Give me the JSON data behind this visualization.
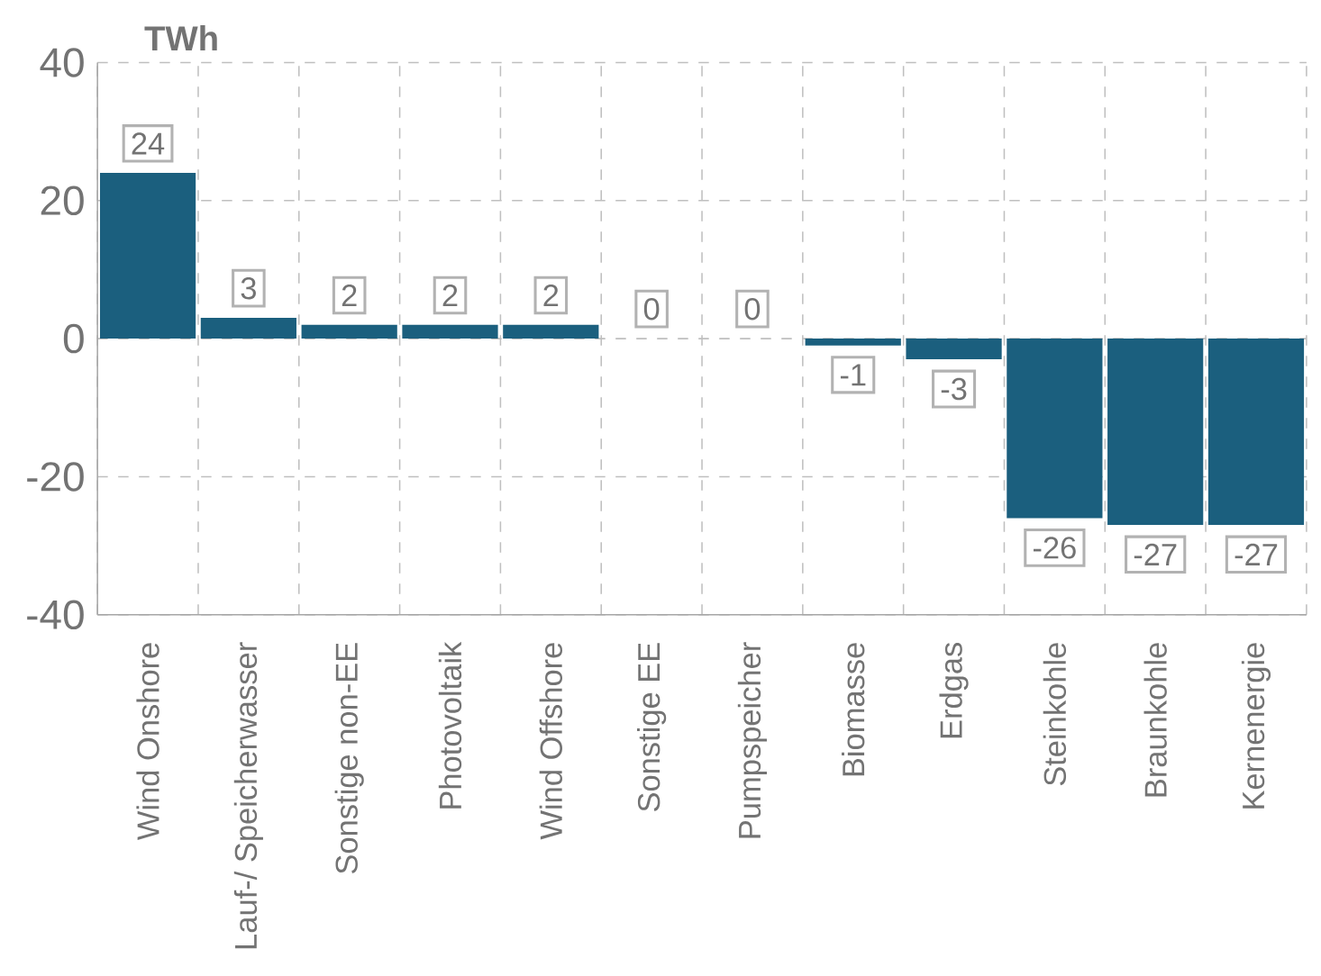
{
  "chart_data": {
    "type": "bar",
    "ylabel": "TWh",
    "categories": [
      "Wind Onshore",
      "Lauf-/ Speicherwasser",
      "Sonstige non-EE",
      "Photovoltaik",
      "Wind Offshore",
      "Sonstige EE",
      "Pumpspeicher",
      "Biomasse",
      "Erdgas",
      "Steinkohle",
      "Braunkohle",
      "Kernenergie"
    ],
    "values": [
      24,
      3,
      2,
      2,
      2,
      0,
      0,
      -1,
      -3,
      -26,
      -27,
      -27
    ],
    "color": "#1b5f7e",
    "ylim": [
      -40,
      40
    ],
    "yticks": [
      -40,
      -20,
      0,
      20,
      40
    ],
    "grid": true,
    "data_labels": true
  }
}
